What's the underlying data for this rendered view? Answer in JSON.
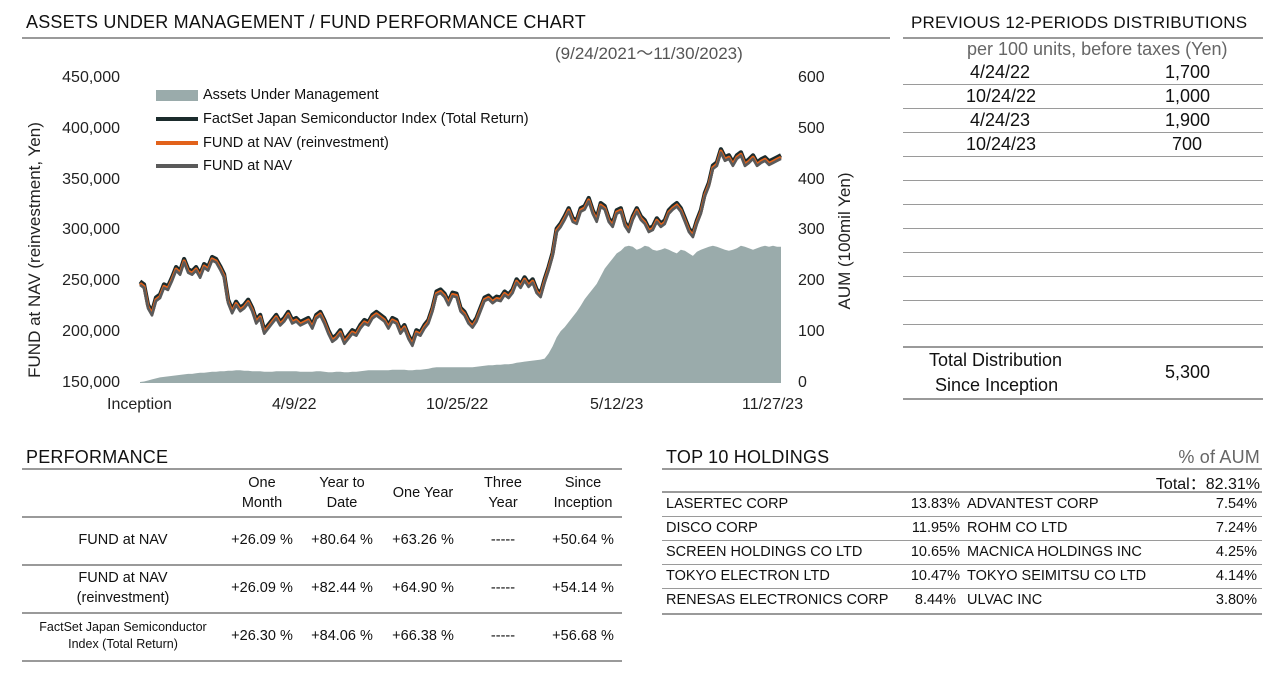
{
  "chart_title": "ASSETS UNDER MANAGEMENT / FUND PERFORMANCE CHART",
  "chart_period": "(9/24/2021～11/30/2023)",
  "chart_data": {
    "type": "line",
    "y_left": {
      "label": "FUND at NAV (reinvestment, Yen)",
      "ticks": [
        "450,000",
        "400,000",
        "350,000",
        "300,000",
        "250,000",
        "200,000",
        "150,000"
      ],
      "range": [
        150000,
        450000
      ]
    },
    "y_right": {
      "label": "AUM (100mil Yen)",
      "ticks": [
        "600",
        "500",
        "400",
        "300",
        "200",
        "100",
        "0"
      ],
      "range": [
        0,
        600
      ]
    },
    "x_ticks": [
      "Inception",
      "4/9/22",
      "10/25/22",
      "5/12/23",
      "11/27/23"
    ],
    "legend": [
      "Assets Under Management",
      "FactSet Japan Semiconductor Index (Total Return)",
      "FUND at NAV  (reinvestment)",
      "FUND at NAV"
    ],
    "colors": {
      "aum": "#9aabab",
      "index": "#1b2b2c",
      "reinvest": "#e2621b",
      "nav": "#5a5a5a"
    },
    "x_index": [
      0,
      4,
      8,
      12,
      16,
      20,
      24,
      28,
      32,
      36,
      40,
      44,
      48,
      52,
      56,
      60,
      64,
      68,
      72,
      76,
      80,
      84,
      88,
      92,
      96,
      100,
      104,
      108,
      112,
      116,
      120,
      124,
      128,
      132,
      136,
      140,
      144,
      148,
      152,
      156,
      160,
      164,
      168,
      172,
      176,
      180,
      184,
      188,
      192,
      196,
      200,
      204,
      208,
      212,
      216,
      220,
      224,
      228,
      232,
      236,
      240,
      244,
      248,
      252,
      256,
      260,
      264,
      268,
      272,
      276,
      280,
      284,
      288,
      292,
      296,
      300,
      304,
      308,
      312,
      316,
      320,
      324,
      328,
      332,
      336,
      340,
      344,
      348,
      352,
      356,
      360,
      364,
      368,
      372,
      376,
      380,
      384,
      388,
      392,
      396,
      400,
      404,
      408,
      412,
      416,
      420,
      424,
      428,
      432,
      436,
      440,
      444,
      448,
      452,
      456,
      460,
      464,
      468,
      472,
      476,
      480,
      484,
      488,
      492,
      496,
      500,
      504,
      508,
      512,
      516,
      520,
      524,
      528,
      532,
      536,
      540,
      544,
      548,
      552,
      556,
      560,
      564,
      568,
      572,
      576,
      580,
      584,
      588,
      592,
      596,
      600,
      604,
      608,
      612,
      616,
      620,
      624,
      628,
      632,
      636,
      640
    ],
    "nav": [
      248000,
      245000,
      225000,
      218000,
      232000,
      235000,
      245000,
      243000,
      252000,
      262000,
      258000,
      270000,
      260000,
      258000,
      262000,
      255000,
      265000,
      262000,
      272000,
      270000,
      263000,
      255000,
      230000,
      220000,
      228000,
      222000,
      225000,
      230000,
      222000,
      210000,
      215000,
      200000,
      205000,
      210000,
      215000,
      208000,
      212000,
      218000,
      210000,
      212000,
      208000,
      210000,
      212000,
      205000,
      215000,
      218000,
      210000,
      200000,
      192000,
      195000,
      200000,
      190000,
      195000,
      200000,
      198000,
      205000,
      210000,
      208000,
      215000,
      218000,
      215000,
      212000,
      205000,
      212000,
      210000,
      200000,
      205000,
      195000,
      188000,
      200000,
      198000,
      205000,
      210000,
      222000,
      238000,
      240000,
      236000,
      228000,
      237000,
      236000,
      222000,
      218000,
      210000,
      206000,
      212000,
      222000,
      232000,
      234000,
      230000,
      233000,
      232000,
      238000,
      235000,
      240000,
      250000,
      245000,
      252000,
      246000,
      250000,
      240000,
      236000,
      250000,
      262000,
      276000,
      300000,
      305000,
      312000,
      320000,
      310000,
      308000,
      320000,
      322000,
      330000,
      318000,
      310000,
      325000,
      322000,
      310000,
      305000,
      318000,
      320000,
      306000,
      300000,
      312000,
      320000,
      312000,
      308000,
      300000,
      302000,
      310000,
      305000,
      308000,
      318000,
      322000,
      325000,
      320000,
      310000,
      300000,
      295000,
      308000,
      318000,
      335000,
      345000,
      362000,
      365000,
      378000,
      370000,
      372000,
      365000,
      372000,
      375000,
      365000,
      368000,
      372000,
      365000,
      368000,
      370000,
      366000,
      368000,
      370000,
      372000
    ],
    "reinvest": [
      248000,
      245000,
      225000,
      218000,
      232000,
      235000,
      245000,
      243000,
      252000,
      262000,
      258000,
      270000,
      260000,
      258000,
      262000,
      255000,
      265000,
      262000,
      272000,
      270000,
      263000,
      255000,
      230000,
      220000,
      228000,
      222000,
      225000,
      230000,
      222000,
      210000,
      215000,
      200000,
      205000,
      210000,
      215000,
      208000,
      212000,
      218000,
      210000,
      212000,
      208000,
      210000,
      212000,
      205000,
      215000,
      218000,
      210000,
      200000,
      192000,
      195000,
      200000,
      190000,
      195000,
      200000,
      198000,
      205000,
      210000,
      208000,
      215000,
      218000,
      215000,
      212000,
      205000,
      212000,
      210000,
      200000,
      205000,
      195000,
      188000,
      200000,
      198000,
      205000,
      210000,
      222000,
      238000,
      240000,
      236000,
      228000,
      237000,
      236000,
      222000,
      218000,
      210000,
      206000,
      212000,
      222000,
      232000,
      234000,
      230000,
      233000,
      232000,
      238000,
      235000,
      240000,
      250000,
      245000,
      252000,
      246000,
      250000,
      240000,
      236000,
      250000,
      262000,
      276000,
      300000,
      305000,
      312000,
      320000,
      310000,
      308000,
      320000,
      322000,
      330000,
      318000,
      310000,
      325000,
      322000,
      310000,
      305000,
      318000,
      320000,
      306000,
      300000,
      312000,
      320000,
      312000,
      308000,
      300000,
      302000,
      310000,
      305000,
      308000,
      318000,
      322000,
      325000,
      320000,
      310000,
      300000,
      295000,
      308000,
      318000,
      335000,
      345000,
      362000,
      365000,
      378000,
      370000,
      372000,
      365000,
      372000,
      375000,
      365000,
      368000,
      372000,
      365000,
      368000,
      370000,
      366000,
      368000,
      370000,
      372000
    ],
    "index": [
      248000,
      245000,
      225000,
      218000,
      232000,
      235000,
      245000,
      243000,
      252000,
      262000,
      258000,
      270000,
      260000,
      258000,
      262000,
      255000,
      265000,
      262000,
      272000,
      270000,
      263000,
      255000,
      230000,
      220000,
      228000,
      222000,
      225000,
      230000,
      222000,
      210000,
      215000,
      200000,
      205000,
      210000,
      215000,
      208000,
      212000,
      218000,
      210000,
      212000,
      208000,
      210000,
      212000,
      205000,
      215000,
      218000,
      210000,
      200000,
      192000,
      195000,
      200000,
      190000,
      195000,
      200000,
      198000,
      205000,
      210000,
      208000,
      215000,
      218000,
      215000,
      212000,
      205000,
      212000,
      210000,
      200000,
      205000,
      195000,
      188000,
      200000,
      198000,
      205000,
      210000,
      222000,
      238000,
      240000,
      236000,
      228000,
      237000,
      236000,
      222000,
      218000,
      210000,
      206000,
      212000,
      222000,
      232000,
      234000,
      230000,
      233000,
      232000,
      238000,
      235000,
      240000,
      250000,
      245000,
      252000,
      246000,
      250000,
      240000,
      236000,
      250000,
      262000,
      276000,
      300000,
      305000,
      312000,
      320000,
      310000,
      308000,
      320000,
      322000,
      330000,
      318000,
      310000,
      325000,
      322000,
      310000,
      305000,
      318000,
      320000,
      306000,
      300000,
      312000,
      320000,
      312000,
      308000,
      300000,
      302000,
      310000,
      305000,
      308000,
      318000,
      322000,
      325000,
      320000,
      310000,
      300000,
      295000,
      308000,
      318000,
      335000,
      345000,
      362000,
      365000,
      378000,
      370000,
      372000,
      365000,
      372000,
      375000,
      365000,
      368000,
      372000,
      365000,
      368000,
      370000,
      366000,
      368000,
      370000,
      372000
    ],
    "aum": [
      2,
      3,
      5,
      7,
      9,
      11,
      12,
      13,
      14,
      15,
      16,
      17,
      18,
      18,
      19,
      20,
      20,
      21,
      22,
      22,
      23,
      23,
      24,
      24,
      25,
      25,
      24,
      24,
      23,
      23,
      23,
      22,
      22,
      22,
      23,
      23,
      23,
      23,
      23,
      23,
      22,
      22,
      22,
      22,
      23,
      23,
      22,
      21,
      21,
      22,
      22,
      21,
      21,
      22,
      22,
      23,
      24,
      25,
      25,
      25,
      25,
      25,
      25,
      26,
      26,
      26,
      26,
      25,
      25,
      26,
      26,
      27,
      28,
      30,
      31,
      31,
      31,
      31,
      31,
      31,
      31,
      31,
      31,
      31,
      32,
      33,
      34,
      35,
      35,
      36,
      36,
      37,
      37,
      38,
      40,
      41,
      42,
      43,
      44,
      45,
      46,
      48,
      58,
      72,
      90,
      102,
      110,
      120,
      130,
      140,
      152,
      165,
      175,
      185,
      195,
      210,
      225,
      235,
      245,
      255,
      260,
      268,
      270,
      268,
      262,
      265,
      270,
      268,
      262,
      260,
      262,
      265,
      262,
      258,
      255,
      262,
      260,
      255,
      250,
      258,
      262,
      265,
      268,
      270,
      268,
      265,
      262,
      260,
      262,
      265,
      270,
      268,
      265,
      262,
      265,
      268,
      270,
      268,
      270,
      268,
      268
    ]
  },
  "distributions": {
    "title": "PREVIOUS 12-PERIODS DISTRIBUTIONS",
    "subtitle": "per 100 units, before taxes (Yen)",
    "rows": [
      {
        "date": "4/24/22",
        "amount": "1,700"
      },
      {
        "date": "10/24/22",
        "amount": "1,000"
      },
      {
        "date": "4/24/23",
        "amount": "1,900"
      },
      {
        "date": "10/24/23",
        "amount": "700"
      }
    ],
    "total_label_line1": "Total Distribution",
    "total_label_line2": "Since Inception",
    "total_value": "5,300"
  },
  "performance": {
    "title": "PERFORMANCE",
    "headers": [
      [
        "One",
        "Month"
      ],
      [
        "Year to",
        "Date"
      ],
      [
        "One Year",
        ""
      ],
      [
        "Three",
        "Year"
      ],
      [
        "Since",
        "Inception"
      ]
    ],
    "rows": [
      {
        "label1": "FUND at NAV",
        "label2": "",
        "values": [
          "+26.09 %",
          "+80.64 %",
          "+63.26 %",
          "-----",
          "+50.64 %"
        ]
      },
      {
        "label1": "FUND at NAV",
        "label2": "(reinvestment)",
        "values": [
          "+26.09 %",
          "+82.44 %",
          "+64.90 %",
          "-----",
          "+54.14 %"
        ]
      },
      {
        "label1": "FactSet Japan Semiconductor",
        "label2": "Index (Total Return)",
        "values": [
          "+26.30 %",
          "+84.06 %",
          "+66.38 %",
          "-----",
          "+56.68 %"
        ]
      }
    ]
  },
  "holdings": {
    "title": "TOP 10 HOLDINGS",
    "unit": "% of AUM",
    "total": "Total：82.31%",
    "left": [
      {
        "name": "LASERTEC CORP",
        "pct": "13.83%"
      },
      {
        "name": "DISCO CORP",
        "pct": "11.95%"
      },
      {
        "name": "SCREEN HOLDINGS CO LTD",
        "pct": "10.65%"
      },
      {
        "name": "TOKYO ELECTRON LTD",
        "pct": "10.47%"
      },
      {
        "name": "RENESAS ELECTRONICS CORP",
        "pct": "8.44%"
      }
    ],
    "right": [
      {
        "name": "ADVANTEST CORP",
        "pct": "7.54%"
      },
      {
        "name": "ROHM CO LTD",
        "pct": "7.24%"
      },
      {
        "name": "MACNICA HOLDINGS INC",
        "pct": "4.25%"
      },
      {
        "name": "TOKYO SEIMITSU CO LTD",
        "pct": "4.14%"
      },
      {
        "name": "ULVAC INC",
        "pct": "3.80%"
      }
    ]
  }
}
